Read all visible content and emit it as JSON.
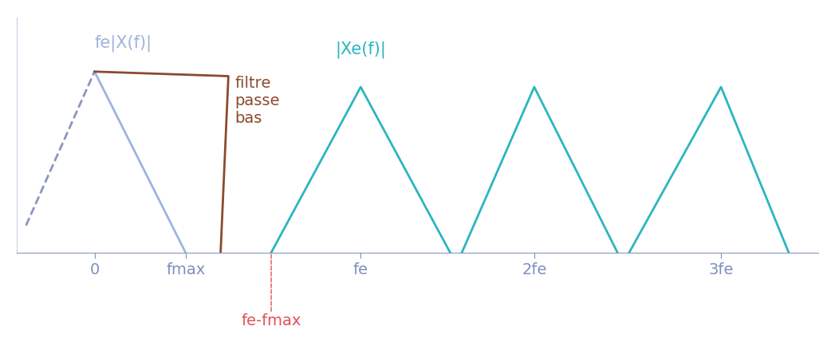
{
  "chart_data": {
    "type": "line",
    "xlim": [
      -1.0,
      9.3
    ],
    "ylim": [
      0,
      2.6
    ],
    "xticks": [
      0,
      {
        "value": 1.17,
        "label": "fmax"
      },
      {
        "value": 3.42,
        "label": "fe"
      },
      {
        "value": 5.65,
        "label": "2fe"
      },
      {
        "value": 8.05,
        "label": "3fe"
      }
    ],
    "yticks": [],
    "tick_labels": "x",
    "grid": false,
    "series": [
      {
        "name": "fe|X(f)|",
        "color": "#9fb3e0",
        "x": [
          0,
          1.17
        ],
        "values": [
          2.0,
          0
        ]
      },
      {
        "color": "#8a96c0",
        "line_style": "dashed",
        "x": [
          -0.88,
          0
        ],
        "values": [
          0.3,
          2.0
        ]
      },
      {
        "name": "|Xe(f)|",
        "color": "#2bb5c0",
        "x": [
          2.27,
          3.42,
          4.57,
          null,
          4.72,
          5.65,
          6.72,
          null,
          6.87,
          8.05,
          8.92
        ],
        "values": [
          0,
          1.83,
          0,
          null,
          0,
          1.83,
          0,
          null,
          0,
          1.83,
          0
        ]
      },
      {
        "name": "filtre\npasse\nbas",
        "color": "#8b4a2e",
        "x": [
          0,
          1.72,
          1.62
        ],
        "values": [
          2.0,
          1.95,
          0
        ]
      }
    ],
    "annotations": [
      {
        "text": "fe-fmax",
        "x": 2.27,
        "color": "#e0505a",
        "line_style": "dashed"
      }
    ]
  }
}
